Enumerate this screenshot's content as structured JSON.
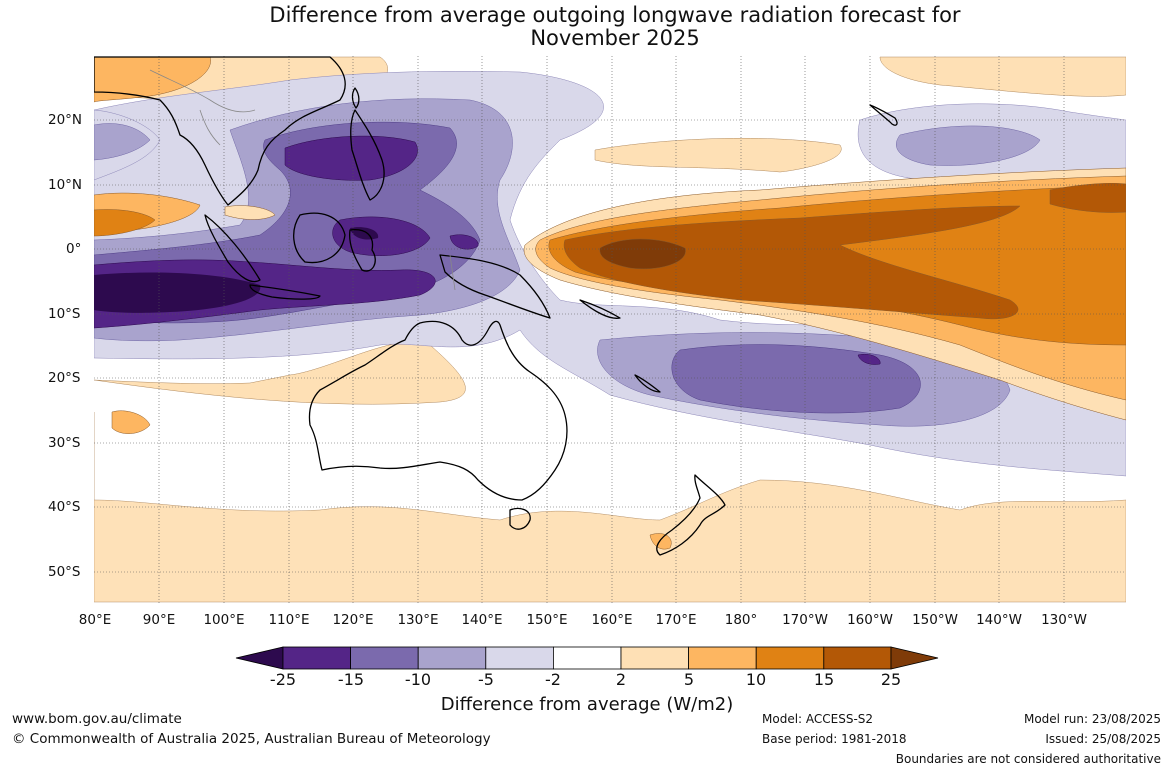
{
  "title_line1": "Difference from average outgoing longwave radiation forecast for",
  "title_line2": "November 2025",
  "longitude_labels": [
    "80°E",
    "90°E",
    "100°E",
    "110°E",
    "120°E",
    "130°E",
    "140°E",
    "150°E",
    "160°E",
    "170°E",
    "180°",
    "170°W",
    "160°W",
    "150°W",
    "140°W",
    "130°W"
  ],
  "latitude_labels": [
    "20°N",
    "10°N",
    "0°",
    "10°S",
    "20°S",
    "30°S",
    "40°S",
    "50°S"
  ],
  "colorbar": {
    "title": "Difference from average (W/m2)",
    "ticks": [
      "-25",
      "-15",
      "-10",
      "-5",
      "-2",
      "2",
      "5",
      "10",
      "15",
      "25"
    ],
    "colors": [
      "#2d0a4e",
      "#542587",
      "#7b6aad",
      "#a9a3cd",
      "#d9d8ea",
      "#ffffff",
      "#fee0b5",
      "#fdb661",
      "#e08214",
      "#b35806",
      "#7f3b08"
    ]
  },
  "footer": {
    "website": "www.bom.gov.au/climate",
    "copyright": "© Commonwealth of Australia 2025, Australian Bureau of Meteorology",
    "model": "Model: ACCESS-S2",
    "base_period": "Base period: 1981-2018",
    "model_run": "Model run: 23/08/2025",
    "issued": "Issued: 25/08/2025",
    "disclaimer": "Boundaries are not considered authoritative"
  }
}
